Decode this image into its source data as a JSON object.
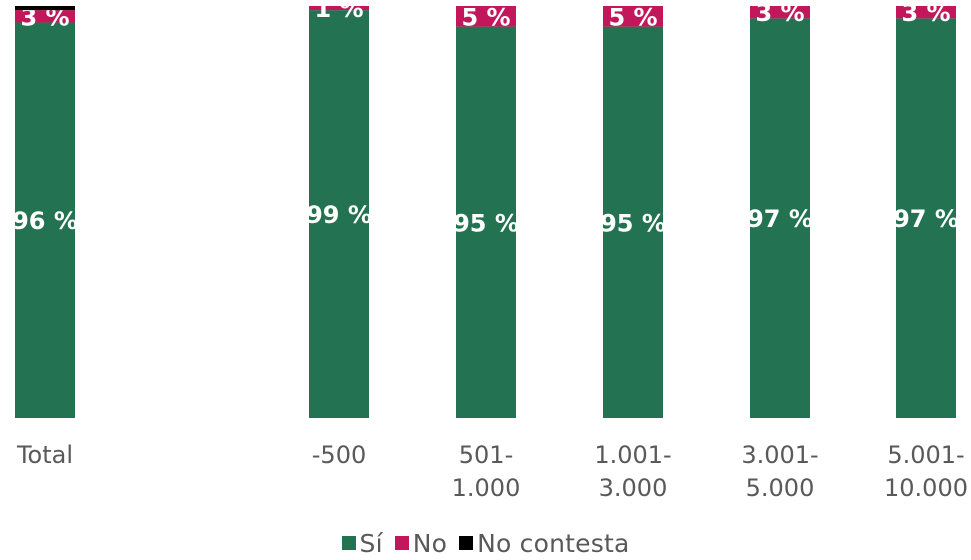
{
  "chart_data": {
    "type": "bar",
    "stacked": true,
    "percent_stacked": true,
    "categories": [
      "Total",
      "-500",
      "501-\n1.000",
      "1.001-\n3.000",
      "3.001-\n5.000",
      "5.001-\n10.000"
    ],
    "series": [
      {
        "name": "Sí",
        "color": "#237352",
        "values": [
          96,
          99,
          95,
          95,
          97,
          97
        ],
        "labels": [
          "96 %",
          "99 %",
          "95 %",
          "95 %",
          "97 %",
          "97 %"
        ]
      },
      {
        "name": "No",
        "color": "#C2185B",
        "values": [
          3,
          1,
          5,
          5,
          3,
          3
        ],
        "labels": [
          "3 %",
          "1 %",
          "5 %",
          "5 %",
          "3 %",
          "3 %"
        ]
      },
      {
        "name": "No contesta",
        "color": "#000000",
        "values": [
          1,
          0,
          0,
          0,
          0,
          0
        ],
        "labels": [
          "",
          "",
          "",
          "",
          "",
          ""
        ]
      }
    ],
    "ylim": [
      0,
      100
    ],
    "grid": false,
    "legend_position": "bottom"
  }
}
